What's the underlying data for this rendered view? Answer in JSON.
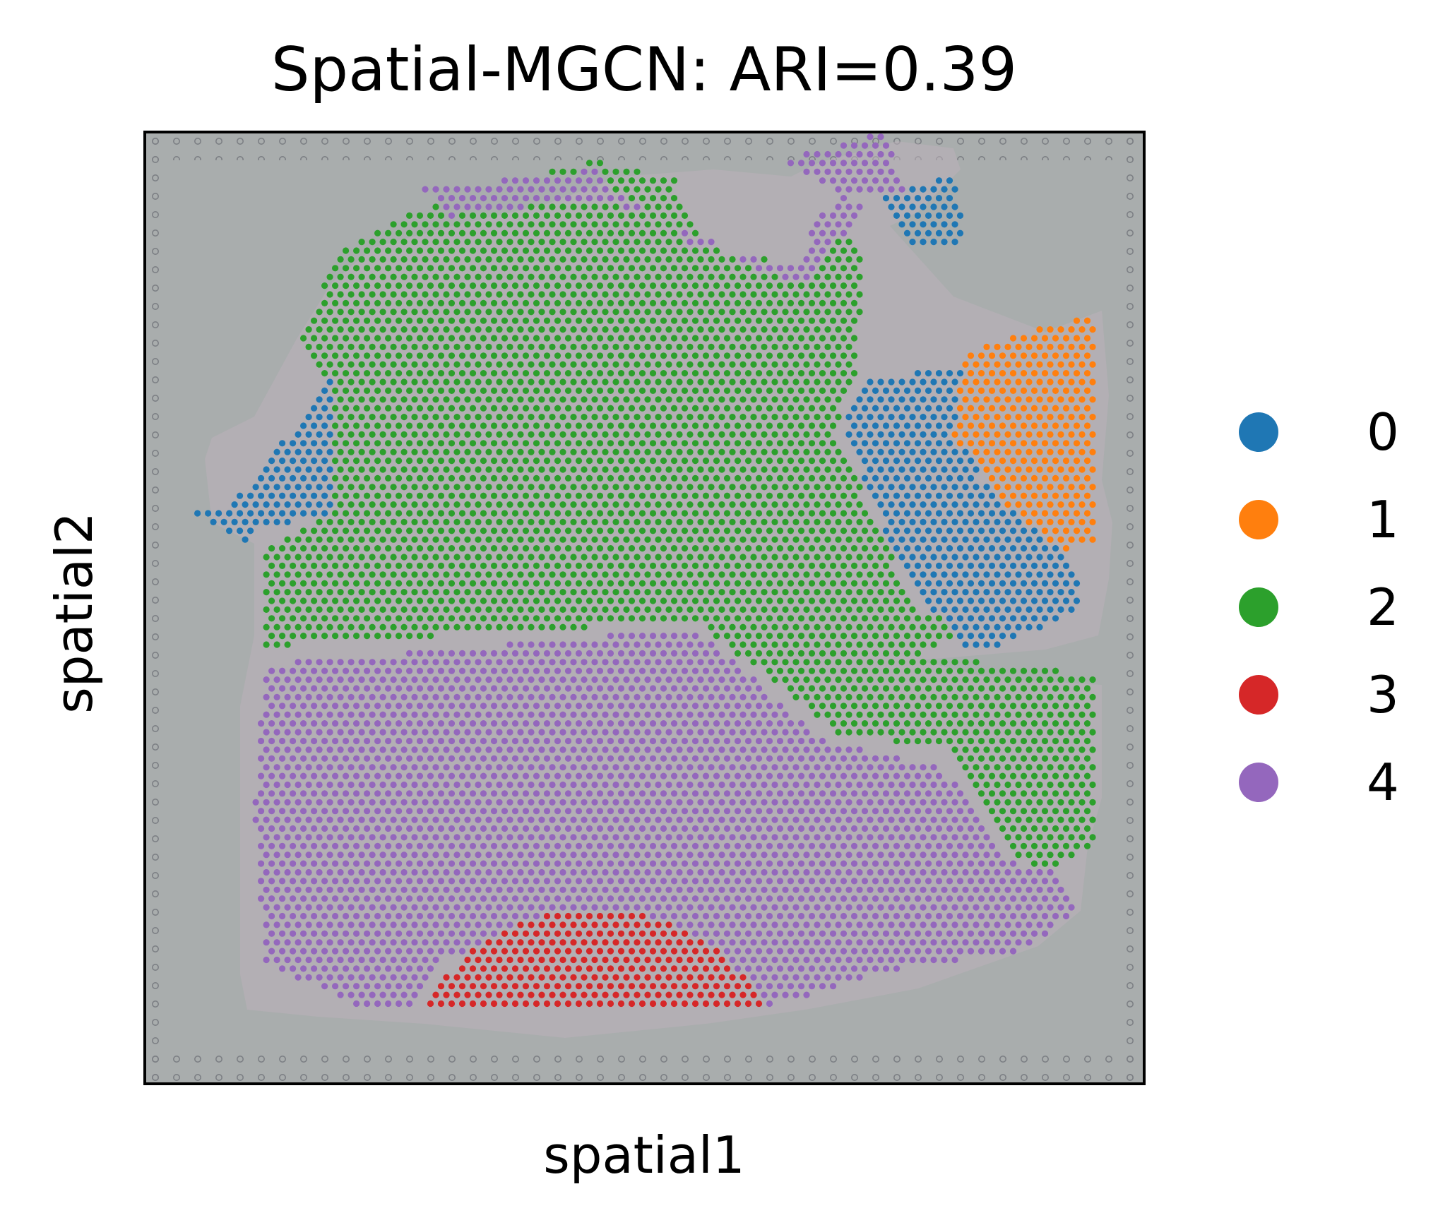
{
  "chart_data": {
    "type": "scatter",
    "title": "Spatial-MGCN: ARI=0.39",
    "xlabel": "spatial1",
    "ylabel": "spatial2",
    "x_ticks": [],
    "y_ticks": [],
    "legend_placement": "right",
    "background": "tissue histology image (H&E section on gray slide)",
    "series": [
      {
        "name": "0",
        "color": "#1f77b4",
        "regions": [
          {
            "polygon": [
              [
                0.08,
                0.4
              ],
              [
                0.15,
                0.31
              ],
              [
                0.19,
                0.25
              ],
              [
                0.19,
                0.27
              ],
              [
                0.19,
                0.4
              ],
              [
                0.11,
                0.42
              ],
              [
                0.1,
                0.43
              ],
              [
                0.05,
                0.4
              ]
            ]
          },
          {
            "polygon": [
              [
                0.72,
                0.26
              ],
              [
                0.86,
                0.24
              ],
              [
                0.86,
                0.29
              ],
              [
                0.83,
                0.36
              ],
              [
                0.92,
                0.43
              ],
              [
                0.94,
                0.5
              ],
              [
                0.83,
                0.55
              ],
              [
                0.76,
                0.47
              ],
              [
                0.7,
                0.31
              ]
            ]
          },
          {
            "polygon": [
              [
                0.74,
                0.07
              ],
              [
                0.81,
                0.04
              ],
              [
                0.82,
                0.12
              ],
              [
                0.76,
                0.12
              ]
            ]
          }
        ]
      },
      {
        "name": "1",
        "color": "#ff7f0e",
        "regions": [
          {
            "polygon": [
              [
                0.82,
                0.23
              ],
              [
                0.95,
                0.19
              ],
              [
                0.95,
                0.43
              ],
              [
                0.92,
                0.44
              ],
              [
                0.86,
                0.39
              ],
              [
                0.81,
                0.32
              ]
            ]
          }
        ]
      },
      {
        "name": "2",
        "color": "#2ca02c",
        "regions": [
          {
            "polygon": [
              [
                0.2,
                0.12
              ],
              [
                0.3,
                0.07
              ],
              [
                0.45,
                0.03
              ],
              [
                0.53,
                0.05
              ],
              [
                0.56,
                0.12
              ],
              [
                0.65,
                0.14
              ],
              [
                0.7,
                0.07
              ],
              [
                0.72,
                0.15
              ],
              [
                0.71,
                0.26
              ],
              [
                0.69,
                0.31
              ],
              [
                0.77,
                0.5
              ],
              [
                0.82,
                0.52
              ],
              [
                0.78,
                0.55
              ],
              [
                0.95,
                0.57
              ],
              [
                0.95,
                0.75
              ],
              [
                0.9,
                0.78
              ],
              [
                0.87,
                0.76
              ],
              [
                0.81,
                0.65
              ],
              [
                0.69,
                0.63
              ],
              [
                0.56,
                0.52
              ],
              [
                0.45,
                0.52
              ],
              [
                0.12,
                0.54
              ],
              [
                0.12,
                0.44
              ],
              [
                0.19,
                0.4
              ],
              [
                0.19,
                0.27
              ],
              [
                0.15,
                0.22
              ]
            ]
          }
        ]
      },
      {
        "name": "3",
        "color": "#d62728",
        "regions": [
          {
            "polygon": [
              [
                0.28,
                0.92
              ],
              [
                0.32,
                0.86
              ],
              [
                0.4,
                0.82
              ],
              [
                0.5,
                0.82
              ],
              [
                0.58,
                0.86
              ],
              [
                0.62,
                0.92
              ]
            ]
          }
        ]
      },
      {
        "name": "4",
        "color": "#9467bd",
        "regions": [
          {
            "polygon": [
              [
                0.12,
                0.56
              ],
              [
                0.45,
                0.53
              ],
              [
                0.55,
                0.52
              ],
              [
                0.68,
                0.64
              ],
              [
                0.8,
                0.67
              ],
              [
                0.87,
                0.77
              ],
              [
                0.92,
                0.78
              ],
              [
                0.93,
                0.82
              ],
              [
                0.88,
                0.86
              ],
              [
                0.75,
                0.88
              ],
              [
                0.62,
                0.92
              ],
              [
                0.55,
                0.86
              ],
              [
                0.5,
                0.82
              ],
              [
                0.4,
                0.82
              ],
              [
                0.3,
                0.87
              ],
              [
                0.27,
                0.92
              ],
              [
                0.21,
                0.92
              ],
              [
                0.12,
                0.87
              ],
              [
                0.11,
                0.72
              ]
            ]
          },
          {
            "polygon": [
              [
                0.28,
                0.06
              ],
              [
                0.45,
                0.04
              ],
              [
                0.47,
                0.06
              ],
              [
                0.55,
                0.12
              ],
              [
                0.65,
                0.14
              ],
              [
                0.68,
                0.08
              ],
              [
                0.72,
                0.07
              ],
              [
                0.74,
                0.12
              ],
              [
                0.72,
                0.08
              ],
              [
                0.66,
                0.16
              ],
              [
                0.6,
                0.14
              ],
              [
                0.56,
                0.11
              ],
              [
                0.45,
                0.07
              ],
              [
                0.3,
                0.09
              ]
            ]
          },
          {
            "polygon": [
              [
                0.64,
                0.03
              ],
              [
                0.74,
                0.0
              ],
              [
                0.76,
                0.06
              ],
              [
                0.7,
                0.07
              ]
            ]
          }
        ]
      }
    ]
  },
  "legend": {
    "items": [
      {
        "label": "0",
        "color": "#1f77b4"
      },
      {
        "label": "1",
        "color": "#ff7f0e"
      },
      {
        "label": "2",
        "color": "#2ca02c"
      },
      {
        "label": "3",
        "color": "#d62728"
      },
      {
        "label": "4",
        "color": "#9467bd"
      }
    ]
  }
}
